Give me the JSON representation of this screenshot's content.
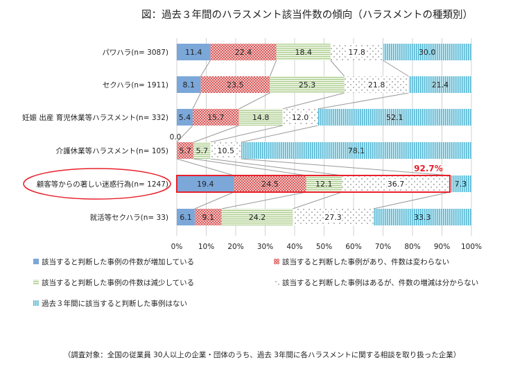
{
  "chart_data": {
    "type": "bar",
    "orientation": "horizontal",
    "stacked": true,
    "title": "図：過去３年間のハラスメント該当件数の傾向（ハラスメントの種類別）",
    "categories": [
      "パワハラ(n= 3087)",
      "セクハラ(n= 1911)",
      "妊娠 出産 育児休業等ハラスメント(n= 332)",
      "介護休業等ハラスメント(n= 105)",
      "顧客等からの著しい迷惑行為(n= 1247)",
      "就活等セクハラ(n= 33)"
    ],
    "series": [
      {
        "name": "該当すると判断した事例の件数が増加している",
        "color": "#7ba7d9",
        "pattern": "solid",
        "values": [
          11.4,
          8.1,
          5.4,
          0.0,
          19.4,
          6.1
        ]
      },
      {
        "name": "該当すると判断した事例があり、件数は変わらない",
        "color": "#e07b7b",
        "pattern": "checker",
        "values": [
          22.4,
          23.5,
          15.7,
          5.7,
          24.5,
          9.1
        ]
      },
      {
        "name": "該当すると判断した事例の件数は減少している",
        "color": "#a9cc8a",
        "pattern": "horizontal-stripes",
        "values": [
          18.4,
          25.3,
          14.8,
          5.7,
          12.1,
          24.2
        ]
      },
      {
        "name": "該当すると判断した事例はあるが、件数の増減は分からない",
        "color": "#555555",
        "pattern": "dots",
        "values": [
          17.8,
          21.8,
          12.0,
          10.5,
          36.7,
          27.3
        ]
      },
      {
        "name": "過去３年間に該当すると判断した事例はない",
        "color": "#4fb6d3",
        "pattern": "vertical-stripes",
        "values": [
          30.0,
          21.4,
          52.1,
          78.1,
          7.3,
          33.3
        ]
      }
    ],
    "xlim": [
      0,
      100
    ],
    "xticks": [
      "0%",
      "10%",
      "20%",
      "30%",
      "40%",
      "50%",
      "60%",
      "70%",
      "80%",
      "90%",
      "100%"
    ],
    "grid": true,
    "legend": "bottom",
    "annotation": "92.7%",
    "highlight_color": "#e8202a",
    "highlight_category": 4,
    "note": "（調査対象：全国の従業員 30人以上の企業・団体のうち、過去 3年間に各ハラスメントに関する相談を取り扱った企業）"
  }
}
